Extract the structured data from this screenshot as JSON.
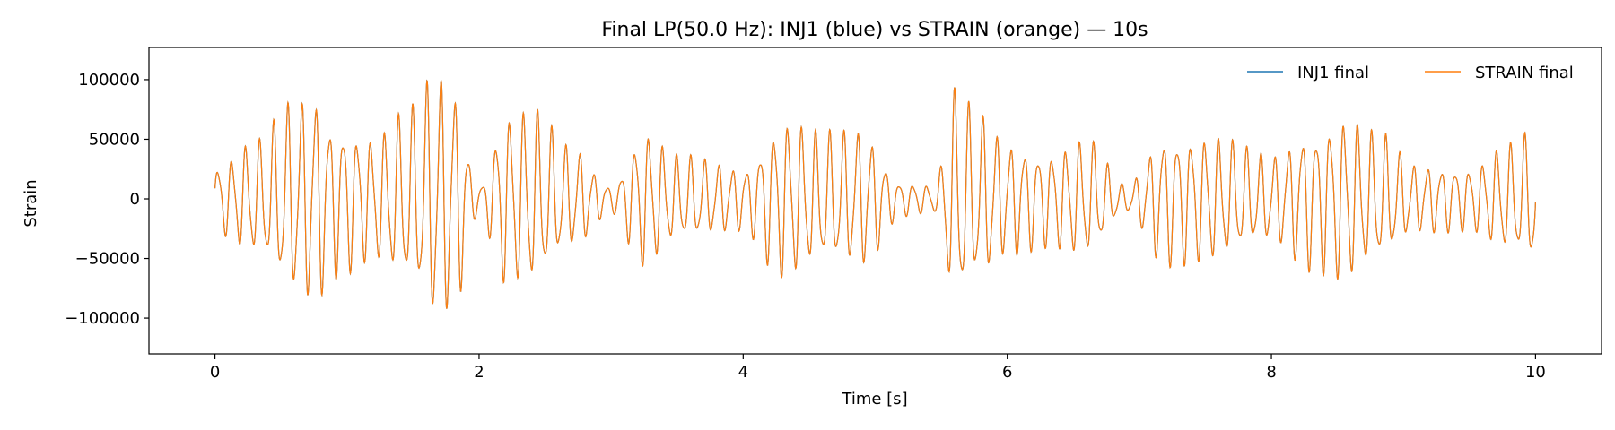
{
  "chart_data": {
    "type": "line",
    "title": "Final LP(50.0 Hz): INJ1 (blue) vs STRAIN (orange) — 10s",
    "xlabel": "Time [s]",
    "ylabel": "Strain",
    "xlim": [
      -0.5,
      10.5
    ],
    "ylim": [
      -130000,
      127000
    ],
    "xticks": [
      0,
      2,
      4,
      6,
      8,
      10
    ],
    "xtick_labels": [
      "0",
      "2",
      "4",
      "6",
      "8",
      "10"
    ],
    "yticks": [
      -100000,
      -50000,
      0,
      50000,
      100000
    ],
    "ytick_labels": [
      "−100000",
      "−50000",
      "0",
      "50000",
      "100000"
    ],
    "grid": false,
    "legend_position": "top-right",
    "legend_columns": 2,
    "series": [
      {
        "name": "INJ1 final",
        "color": "#1f77b4"
      },
      {
        "name": "STRAIN final",
        "color": "#ff7f0e"
      }
    ],
    "oscillation_hz": 9.5,
    "envelope": {
      "t": [
        0,
        0.3,
        0.6,
        0.75,
        0.9,
        1.2,
        1.5,
        1.67,
        1.8,
        2.0,
        2.2,
        2.4,
        2.7,
        3.0,
        3.25,
        3.5,
        4.0,
        4.3,
        4.6,
        4.9,
        5.2,
        5.45,
        5.6,
        5.8,
        6.0,
        6.3,
        6.6,
        6.9,
        7.2,
        7.55,
        8.0,
        8.3,
        8.55,
        8.8,
        9.1,
        9.5,
        9.8,
        10.0
      ],
      "amp": [
        30000,
        50000,
        85000,
        92000,
        68000,
        55000,
        80000,
        112000,
        100000,
        12000,
        75000,
        78000,
        45000,
        12000,
        60000,
        38000,
        28000,
        70000,
        58000,
        60000,
        15000,
        12000,
        95000,
        72000,
        50000,
        42000,
        52000,
        12000,
        58000,
        55000,
        38000,
        62000,
        72000,
        58000,
        30000,
        28000,
        48000,
        60000
      ]
    }
  }
}
